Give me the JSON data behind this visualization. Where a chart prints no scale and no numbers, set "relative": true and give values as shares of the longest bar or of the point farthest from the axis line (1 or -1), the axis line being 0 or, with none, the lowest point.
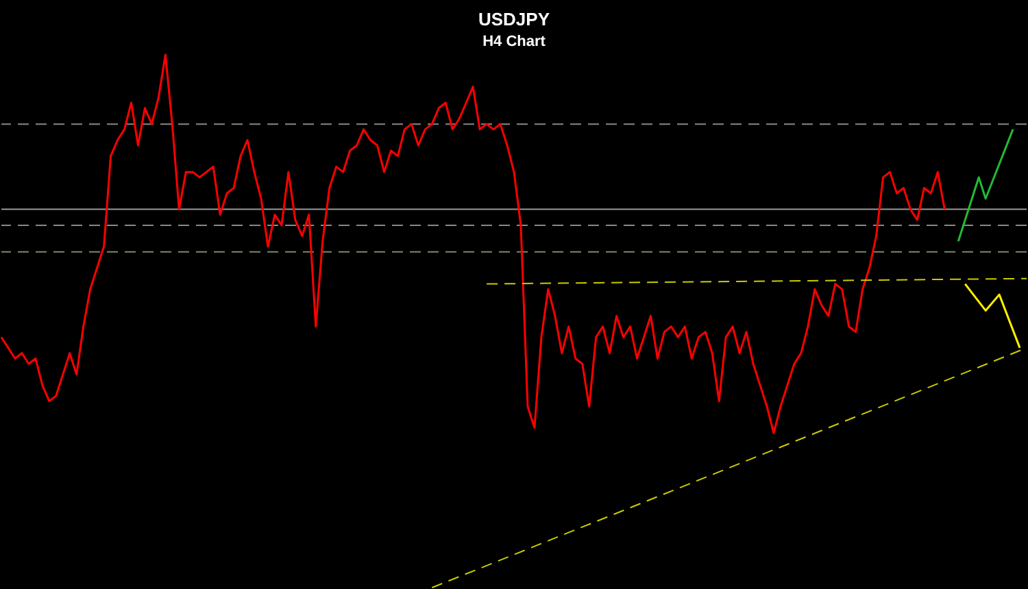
{
  "chart_data": {
    "type": "line",
    "title": "USDJPY",
    "subtitle": "H4 Chart",
    "relative": true,
    "categories": [
      null,
      null,
      null,
      null,
      null,
      null,
      null,
      null,
      null,
      null,
      null,
      null,
      null,
      null,
      null,
      null,
      null,
      null,
      null,
      null,
      null,
      null,
      null,
      null,
      null,
      null,
      null,
      null,
      null,
      null,
      null,
      null,
      null,
      null,
      null,
      null,
      null,
      null,
      null,
      null,
      null,
      null,
      null,
      null,
      null,
      null,
      null,
      null,
      null,
      null,
      null,
      null,
      null,
      null,
      null,
      null,
      null,
      null,
      null,
      null,
      null,
      null,
      null,
      null,
      null,
      null,
      null,
      null,
      null,
      null,
      null,
      null,
      null,
      null,
      null,
      null,
      null,
      null,
      null,
      null,
      null,
      null,
      null,
      null,
      null,
      null,
      null,
      null,
      null,
      null,
      null,
      null,
      null,
      null,
      null,
      null,
      null,
      null,
      null,
      null,
      null,
      null,
      null,
      null,
      null,
      null,
      null,
      null,
      null,
      null,
      null,
      null,
      null,
      null,
      null,
      null,
      null,
      null,
      null,
      null,
      null,
      null,
      null,
      null,
      null,
      null,
      null,
      null,
      null,
      null,
      null,
      null,
      null,
      null,
      null,
      null,
      null,
      null,
      null,
      null,
      null,
      null,
      null,
      null,
      null,
      null,
      null,
      null,
      null,
      null,
      null
    ],
    "series": [
      {
        "color": "#ff0000",
        "line_style": "solid",
        "values": [
          0.47,
          0.45,
          0.43,
          0.44,
          0.42,
          0.43,
          0.38,
          0.35,
          0.36,
          0.4,
          0.44,
          0.4,
          0.49,
          0.56,
          0.6,
          0.64,
          0.81,
          0.84,
          0.86,
          0.91,
          0.83,
          0.9,
          0.87,
          0.92,
          1.0,
          0.87,
          0.71,
          0.78,
          0.78,
          0.77,
          0.78,
          0.79,
          0.7,
          0.74,
          0.75,
          0.81,
          0.84,
          0.78,
          0.73,
          0.64,
          0.7,
          0.68,
          0.78,
          0.69,
          0.66,
          0.7,
          0.49,
          0.65,
          0.75,
          0.79,
          0.78,
          0.82,
          0.83,
          0.86,
          0.84,
          0.83,
          0.78,
          0.82,
          0.81,
          0.86,
          0.87,
          0.83,
          0.86,
          0.87,
          0.9,
          0.91,
          0.86,
          0.88,
          0.91,
          0.94,
          0.86,
          0.87,
          0.86,
          0.87,
          0.83,
          0.78,
          0.68,
          0.34,
          0.3,
          0.47,
          0.56,
          0.51,
          0.44,
          0.49,
          0.43,
          0.42,
          0.34,
          0.47,
          0.49,
          0.44,
          0.51,
          0.47,
          0.49,
          0.43,
          0.47,
          0.51,
          0.43,
          0.48,
          0.49,
          0.47,
          0.49,
          0.43,
          0.47,
          0.48,
          0.44,
          0.35,
          0.47,
          0.49,
          0.44,
          0.48,
          0.42,
          0.38,
          0.34,
          0.29,
          0.34,
          0.38,
          0.42,
          0.44,
          0.49,
          0.56,
          0.53,
          0.51,
          0.57,
          0.56,
          0.49,
          0.48,
          0.56,
          0.6,
          0.66,
          0.77,
          0.78,
          0.74,
          0.75,
          0.71,
          0.69,
          0.75,
          0.74,
          0.78,
          0.71,
          null,
          null,
          null,
          null,
          null,
          null,
          null,
          null,
          null,
          null,
          null,
          null
        ]
      },
      {
        "color": "#22bb33",
        "line_style": "solid",
        "values": [
          null,
          null,
          null,
          null,
          null,
          null,
          null,
          null,
          null,
          null,
          null,
          null,
          null,
          null,
          null,
          null,
          null,
          null,
          null,
          null,
          null,
          null,
          null,
          null,
          null,
          null,
          null,
          null,
          null,
          null,
          null,
          null,
          null,
          null,
          null,
          null,
          null,
          null,
          null,
          null,
          null,
          null,
          null,
          null,
          null,
          null,
          null,
          null,
          null,
          null,
          null,
          null,
          null,
          null,
          null,
          null,
          null,
          null,
          null,
          null,
          null,
          null,
          null,
          null,
          null,
          null,
          null,
          null,
          null,
          null,
          null,
          null,
          null,
          null,
          null,
          null,
          null,
          null,
          null,
          null,
          null,
          null,
          null,
          null,
          null,
          null,
          null,
          null,
          null,
          null,
          null,
          null,
          null,
          null,
          null,
          null,
          null,
          null,
          null,
          null,
          null,
          null,
          null,
          null,
          null,
          null,
          null,
          null,
          null,
          null,
          null,
          null,
          null,
          null,
          null,
          null,
          null,
          null,
          null,
          null,
          null,
          null,
          null,
          null,
          null,
          null,
          null,
          null,
          null,
          null,
          null,
          null,
          null,
          null,
          null,
          null,
          null,
          null,
          null,
          null,
          0.65,
          null,
          null,
          0.77,
          0.73,
          null,
          null,
          null,
          0.86,
          null,
          null
        ]
      },
      {
        "color": "#ffee00",
        "line_style": "solid",
        "values": [
          null,
          null,
          null,
          null,
          null,
          null,
          null,
          null,
          null,
          null,
          null,
          null,
          null,
          null,
          null,
          null,
          null,
          null,
          null,
          null,
          null,
          null,
          null,
          null,
          null,
          null,
          null,
          null,
          null,
          null,
          null,
          null,
          null,
          null,
          null,
          null,
          null,
          null,
          null,
          null,
          null,
          null,
          null,
          null,
          null,
          null,
          null,
          null,
          null,
          null,
          null,
          null,
          null,
          null,
          null,
          null,
          null,
          null,
          null,
          null,
          null,
          null,
          null,
          null,
          null,
          null,
          null,
          null,
          null,
          null,
          null,
          null,
          null,
          null,
          null,
          null,
          null,
          null,
          null,
          null,
          null,
          null,
          null,
          null,
          null,
          null,
          null,
          null,
          null,
          null,
          null,
          null,
          null,
          null,
          null,
          null,
          null,
          null,
          null,
          null,
          null,
          null,
          null,
          null,
          null,
          null,
          null,
          null,
          null,
          null,
          null,
          null,
          null,
          null,
          null,
          null,
          null,
          null,
          null,
          null,
          null,
          null,
          null,
          null,
          null,
          null,
          null,
          null,
          null,
          null,
          null,
          null,
          null,
          null,
          null,
          null,
          null,
          null,
          null,
          null,
          null,
          0.57,
          null,
          null,
          0.52,
          null,
          0.55,
          null,
          null,
          0.45,
          null
        ]
      },
      {
        "color": "#cccc00",
        "line_style": "dashed",
        "values": [
          null,
          null,
          null,
          null,
          null,
          null,
          null,
          null,
          null,
          null,
          null,
          null,
          null,
          null,
          null,
          null,
          null,
          null,
          null,
          null,
          null,
          null,
          null,
          null,
          null,
          null,
          null,
          null,
          null,
          null,
          null,
          null,
          null,
          null,
          null,
          null,
          null,
          null,
          null,
          null,
          null,
          null,
          null,
          null,
          null,
          null,
          null,
          null,
          null,
          null,
          null,
          null,
          null,
          null,
          null,
          null,
          null,
          null,
          null,
          null,
          null,
          null,
          null,
          0.0,
          null,
          null,
          null,
          null,
          null,
          null,
          null,
          null,
          null,
          null,
          null,
          null,
          null,
          null,
          null,
          null,
          null,
          null,
          null,
          null,
          null,
          null,
          null,
          null,
          null,
          null,
          null,
          null,
          null,
          null,
          null,
          null,
          null,
          null,
          null,
          null,
          null,
          null,
          null,
          null,
          null,
          null,
          null,
          null,
          null,
          null,
          null,
          null,
          null,
          null,
          null,
          null,
          null,
          null,
          null,
          null,
          null,
          null,
          null,
          null,
          null,
          null,
          null,
          null,
          null,
          null,
          null,
          null,
          null,
          null,
          null,
          null,
          null,
          null,
          null,
          null,
          null,
          null,
          null,
          null,
          null,
          null,
          null,
          null,
          null,
          null,
          0.45
        ]
      },
      {
        "color": "#cccc00",
        "line_style": "dashed",
        "values": [
          null,
          null,
          null,
          null,
          null,
          null,
          null,
          null,
          null,
          null,
          null,
          null,
          null,
          null,
          null,
          null,
          null,
          null,
          null,
          null,
          null,
          null,
          null,
          null,
          null,
          null,
          null,
          null,
          null,
          null,
          null,
          null,
          null,
          null,
          null,
          null,
          null,
          null,
          null,
          null,
          null,
          null,
          null,
          null,
          null,
          null,
          null,
          null,
          null,
          null,
          null,
          null,
          null,
          null,
          null,
          null,
          null,
          null,
          null,
          null,
          null,
          null,
          null,
          null,
          null,
          null,
          null,
          null,
          null,
          null,
          null,
          0.57,
          null,
          null,
          null,
          null,
          null,
          null,
          null,
          null,
          null,
          null,
          null,
          null,
          null,
          null,
          null,
          null,
          null,
          null,
          null,
          null,
          null,
          null,
          null,
          null,
          null,
          null,
          null,
          null,
          null,
          null,
          null,
          null,
          null,
          null,
          null,
          null,
          null,
          null,
          null,
          null,
          null,
          null,
          null,
          null,
          null,
          null,
          null,
          null,
          null,
          null,
          null,
          null,
          null,
          null,
          null,
          null,
          null,
          null,
          null,
          null,
          null,
          null,
          null,
          null,
          null,
          null,
          null,
          null,
          null,
          null,
          null,
          null,
          null,
          null,
          null,
          null,
          null,
          null,
          0.58
        ]
      }
    ],
    "ref_lines": [
      {
        "axis": "y",
        "value": 0.87,
        "color": "#888888",
        "line_style": "dashed"
      },
      {
        "axis": "y",
        "value": 0.71,
        "color": "#999999",
        "line_style": "solid"
      },
      {
        "axis": "y",
        "value": 0.68,
        "color": "#888888",
        "line_style": "dashed"
      },
      {
        "axis": "y",
        "value": 0.63,
        "color": "#7a8a6a",
        "line_style": "dashed"
      }
    ]
  }
}
